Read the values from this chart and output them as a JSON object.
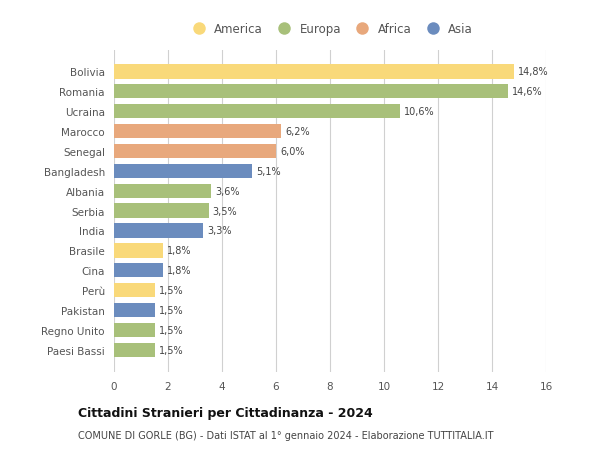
{
  "countries": [
    "Bolivia",
    "Romania",
    "Ucraina",
    "Marocco",
    "Senegal",
    "Bangladesh",
    "Albania",
    "Serbia",
    "India",
    "Brasile",
    "Cina",
    "Perù",
    "Pakistan",
    "Regno Unito",
    "Paesi Bassi"
  ],
  "values": [
    14.8,
    14.6,
    10.6,
    6.2,
    6.0,
    5.1,
    3.6,
    3.5,
    3.3,
    1.8,
    1.8,
    1.5,
    1.5,
    1.5,
    1.5
  ],
  "labels": [
    "14,8%",
    "14,6%",
    "10,6%",
    "6,2%",
    "6,0%",
    "5,1%",
    "3,6%",
    "3,5%",
    "3,3%",
    "1,8%",
    "1,8%",
    "1,5%",
    "1,5%",
    "1,5%",
    "1,5%"
  ],
  "continents": [
    "America",
    "Europa",
    "Europa",
    "Africa",
    "Africa",
    "Asia",
    "Europa",
    "Europa",
    "Asia",
    "America",
    "Asia",
    "America",
    "Asia",
    "Europa",
    "Europa"
  ],
  "colors": {
    "America": "#F9D97A",
    "Europa": "#A8C07A",
    "Africa": "#E8A87C",
    "Asia": "#6B8CBE"
  },
  "xlim": [
    0,
    16
  ],
  "xticks": [
    0,
    2,
    4,
    6,
    8,
    10,
    12,
    14,
    16
  ],
  "title": "Cittadini Stranieri per Cittadinanza - 2024",
  "subtitle": "COMUNE DI GORLE (BG) - Dati ISTAT al 1° gennaio 2024 - Elaborazione TUTTITALIA.IT",
  "bg_color": "#ffffff",
  "grid_color": "#d0d0d0",
  "bar_height": 0.72,
  "legend_order": [
    "America",
    "Europa",
    "Africa",
    "Asia"
  ]
}
